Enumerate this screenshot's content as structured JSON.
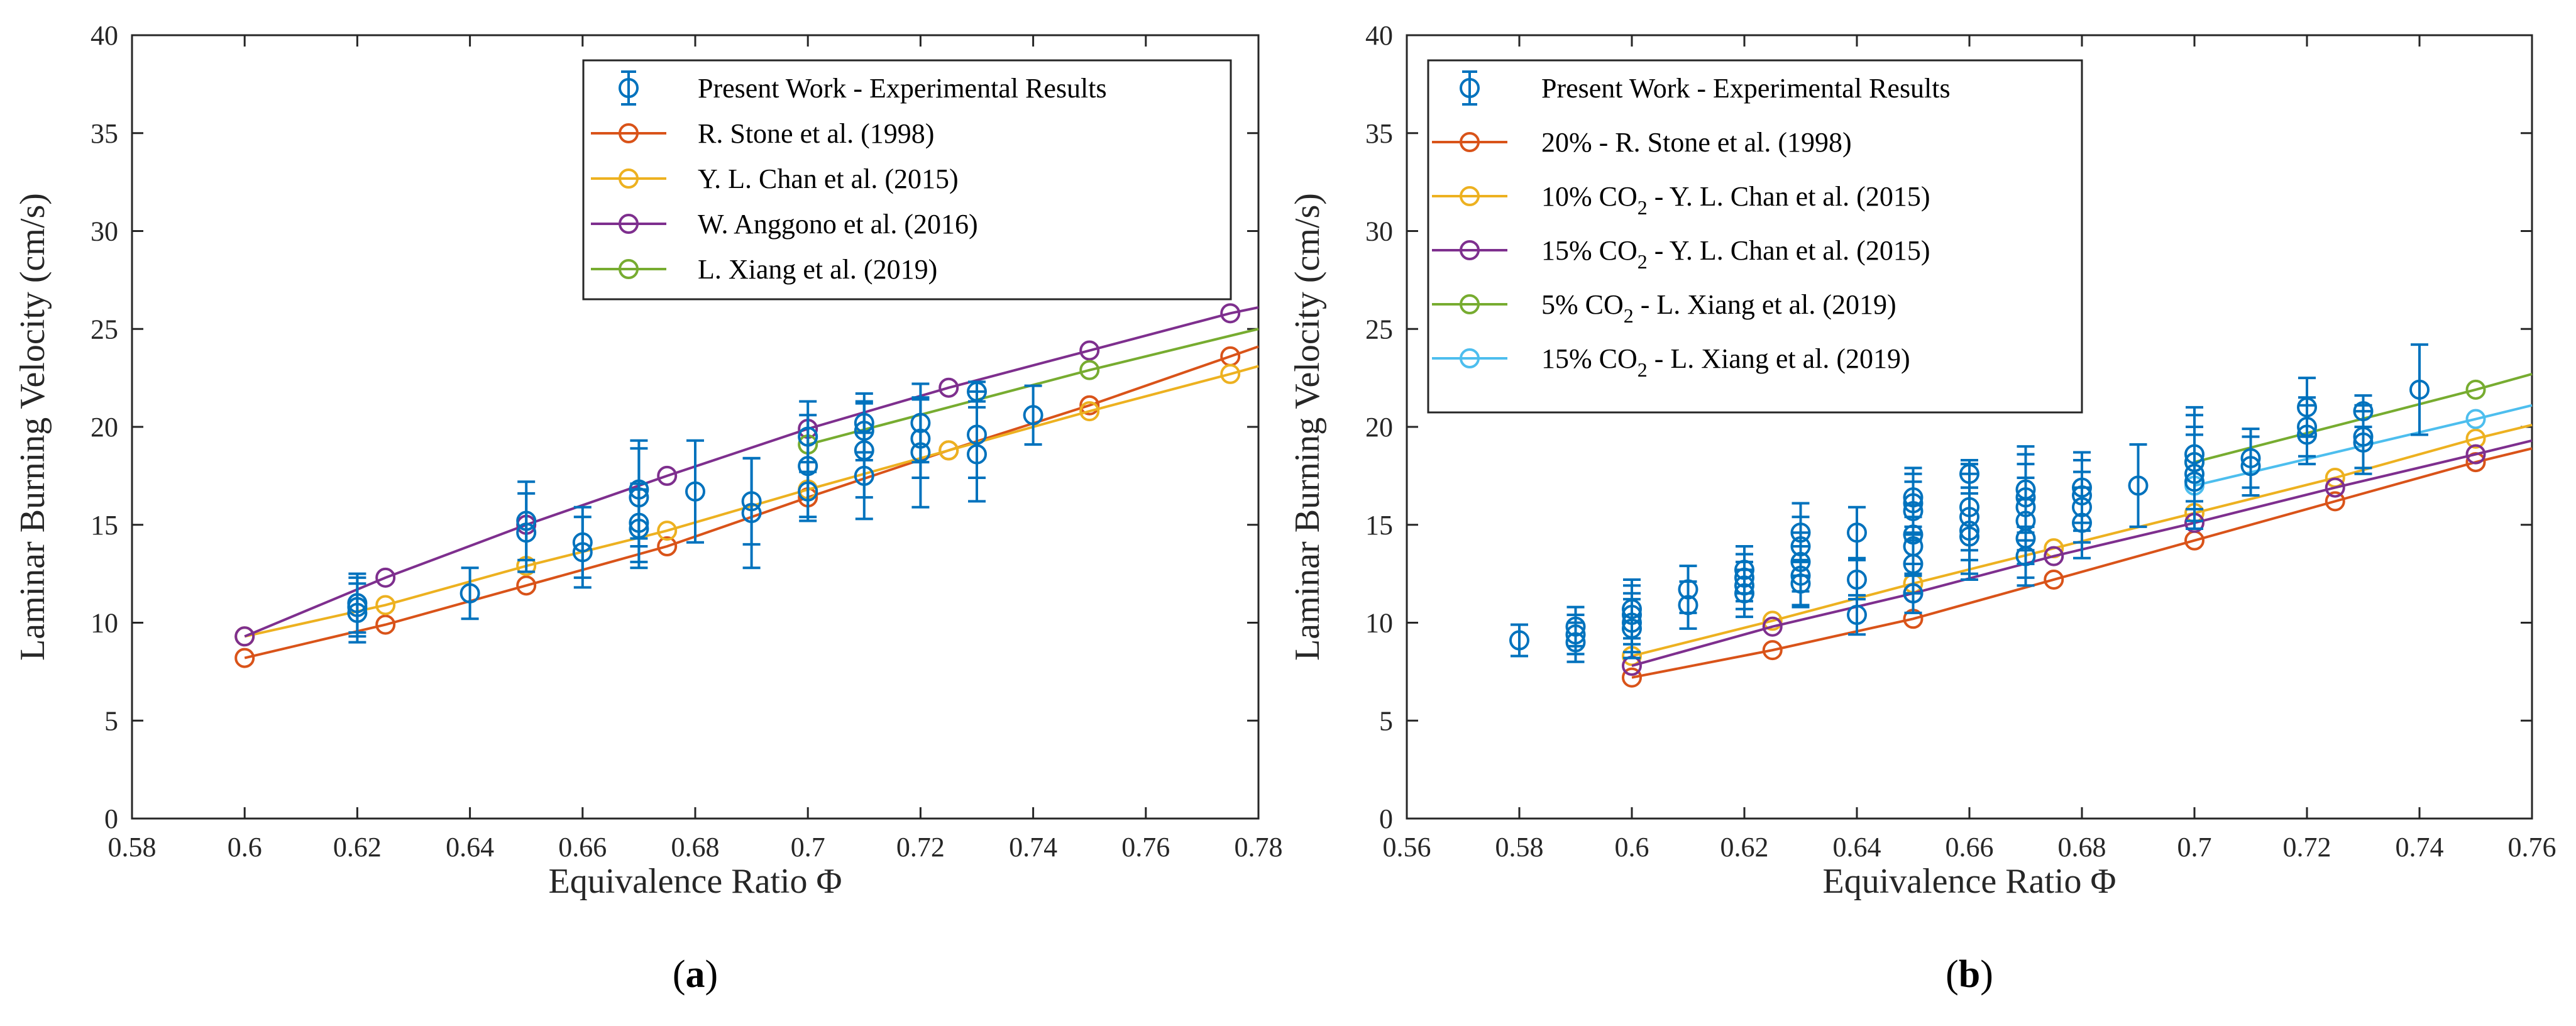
{
  "chart_data": [
    {
      "type": "line",
      "caption_prefix": "(",
      "caption_letter": "a",
      "caption_suffix": ")",
      "xlabel": "Equivalence Ratio Φ",
      "ylabel": "Laminar Burning Velocity (cm/s)",
      "xlim": [
        0.59,
        0.78
      ],
      "ylim": [
        0,
        40
      ],
      "xticks": [
        0.58,
        0.6,
        0.62,
        0.64,
        0.66,
        0.68,
        0.7,
        0.72,
        0.74,
        0.76,
        0.78
      ],
      "xtick_labels": [
        "0.58",
        "0.6",
        "0.62",
        "0.64",
        "0.66",
        "0.68",
        "0.7",
        "0.72",
        "0.74",
        "0.76",
        "0.78"
      ],
      "yticks": [
        0,
        5,
        10,
        15,
        20,
        25,
        30,
        35,
        40
      ],
      "ytick_labels": [
        "0",
        "5",
        "10",
        "15",
        "20",
        "25",
        "30",
        "35",
        "40"
      ],
      "legend_position": "top-right",
      "experimental": {
        "name": "Present Work - Experimental Results",
        "color": "#0072bd",
        "points": [
          {
            "x": 0.62,
            "y": 10.5,
            "err": 1.5
          },
          {
            "x": 0.62,
            "y": 11.0,
            "err": 1.5
          },
          {
            "x": 0.62,
            "y": 10.8,
            "err": 1.5
          },
          {
            "x": 0.64,
            "y": 11.5,
            "err": 1.3
          },
          {
            "x": 0.65,
            "y": 15.2,
            "err": 2.0
          },
          {
            "x": 0.65,
            "y": 14.6,
            "err": 2.0
          },
          {
            "x": 0.66,
            "y": 14.1,
            "err": 1.8
          },
          {
            "x": 0.66,
            "y": 13.6,
            "err": 1.8
          },
          {
            "x": 0.67,
            "y": 16.8,
            "err": 2.5
          },
          {
            "x": 0.67,
            "y": 16.4,
            "err": 2.5
          },
          {
            "x": 0.67,
            "y": 15.1,
            "err": 2.0
          },
          {
            "x": 0.67,
            "y": 14.8,
            "err": 2.0
          },
          {
            "x": 0.68,
            "y": 16.7,
            "err": 2.6
          },
          {
            "x": 0.69,
            "y": 16.2,
            "err": 2.2
          },
          {
            "x": 0.69,
            "y": 15.6,
            "err": 2.8
          },
          {
            "x": 0.7,
            "y": 19.5,
            "err": 1.8
          },
          {
            "x": 0.7,
            "y": 18.0,
            "err": 2.6
          },
          {
            "x": 0.7,
            "y": 16.7,
            "err": 1.5
          },
          {
            "x": 0.71,
            "y": 20.2,
            "err": 1.5
          },
          {
            "x": 0.71,
            "y": 19.8,
            "err": 1.5
          },
          {
            "x": 0.71,
            "y": 18.8,
            "err": 2.4
          },
          {
            "x": 0.71,
            "y": 17.5,
            "err": 2.2
          },
          {
            "x": 0.72,
            "y": 20.2,
            "err": 2.0
          },
          {
            "x": 0.72,
            "y": 19.4,
            "err": 2.0
          },
          {
            "x": 0.72,
            "y": 18.7,
            "err": 2.8
          },
          {
            "x": 0.73,
            "y": 21.8,
            "err": 0.5
          },
          {
            "x": 0.73,
            "y": 19.6,
            "err": 2.2
          },
          {
            "x": 0.73,
            "y": 18.6,
            "err": 2.4
          },
          {
            "x": 0.74,
            "y": 20.6,
            "err": 1.5
          }
        ]
      },
      "series": [
        {
          "name": "R. Stone et al. (1998)",
          "color": "#d95319",
          "x": [
            0.6,
            0.625,
            0.65,
            0.675,
            0.7,
            0.725,
            0.75,
            0.775
          ],
          "values": [
            8.2,
            9.9,
            11.9,
            13.9,
            16.4,
            18.8,
            21.1,
            23.6
          ],
          "end": 24.1
        },
        {
          "name": "Y. L. Chan et al. (2015)",
          "color": "#edb120",
          "x": [
            0.6,
            0.625,
            0.65,
            0.675,
            0.7,
            0.725,
            0.75,
            0.775
          ],
          "values": [
            9.3,
            10.9,
            12.9,
            14.7,
            16.8,
            18.8,
            20.8,
            22.7
          ],
          "end": 23.1
        },
        {
          "name": "W. Anggono et al. (2016)",
          "color": "#7e2f8e",
          "x": [
            0.6,
            0.625,
            0.65,
            0.675,
            0.7,
            0.725,
            0.75,
            0.775
          ],
          "values": [
            9.3,
            12.3,
            15.0,
            17.5,
            19.9,
            22.0,
            23.9,
            25.8
          ],
          "end": 26.1
        },
        {
          "name": "L. Xiang et al. (2019)",
          "color": "#77ac30",
          "x": [
            0.7,
            0.75
          ],
          "values": [
            19.1,
            22.9
          ],
          "end": 25.0
        }
      ]
    },
    {
      "type": "line",
      "caption_prefix": "(",
      "caption_letter": "b",
      "caption_suffix": ")",
      "xlabel": "Equivalence Ratio Φ",
      "ylabel": "Laminar Burning Velocity (cm/s)",
      "xlim": [
        0.57,
        0.76
      ],
      "ylim": [
        0,
        40
      ],
      "xticks": [
        0.56,
        0.58,
        0.6,
        0.62,
        0.64,
        0.66,
        0.68,
        0.7,
        0.72,
        0.74,
        0.76
      ],
      "xtick_labels": [
        "0.56",
        "0.58",
        "0.6",
        "0.62",
        "0.64",
        "0.66",
        "0.68",
        "0.7",
        "0.72",
        "0.74",
        "0.76"
      ],
      "yticks": [
        0,
        5,
        10,
        15,
        20,
        25,
        30,
        35,
        40
      ],
      "ytick_labels": [
        "0",
        "5",
        "10",
        "15",
        "20",
        "25",
        "30",
        "35",
        "40"
      ],
      "legend_position": "top-left",
      "experimental": {
        "name": "Present Work - Experimental Results",
        "color": "#0072bd",
        "points": [
          {
            "x": 0.58,
            "y": 9.1,
            "err": 0.8
          },
          {
            "x": 0.59,
            "y": 9.8,
            "err": 1.0
          },
          {
            "x": 0.59,
            "y": 9.4,
            "err": 1.0
          },
          {
            "x": 0.59,
            "y": 9.0,
            "err": 1.0
          },
          {
            "x": 0.6,
            "y": 10.7,
            "err": 1.5
          },
          {
            "x": 0.6,
            "y": 10.4,
            "err": 1.5
          },
          {
            "x": 0.6,
            "y": 10.0,
            "err": 1.5
          },
          {
            "x": 0.6,
            "y": 9.7,
            "err": 1.5
          },
          {
            "x": 0.61,
            "y": 11.7,
            "err": 1.2
          },
          {
            "x": 0.61,
            "y": 10.9,
            "err": 1.2
          },
          {
            "x": 0.62,
            "y": 12.7,
            "err": 1.2
          },
          {
            "x": 0.62,
            "y": 12.3,
            "err": 1.2
          },
          {
            "x": 0.62,
            "y": 11.9,
            "err": 1.2
          },
          {
            "x": 0.62,
            "y": 11.5,
            "err": 1.2
          },
          {
            "x": 0.63,
            "y": 14.6,
            "err": 1.5
          },
          {
            "x": 0.63,
            "y": 13.9,
            "err": 1.5
          },
          {
            "x": 0.63,
            "y": 13.1,
            "err": 1.5
          },
          {
            "x": 0.63,
            "y": 12.4,
            "err": 1.5
          },
          {
            "x": 0.63,
            "y": 12.0,
            "err": 1.2
          },
          {
            "x": 0.64,
            "y": 14.6,
            "err": 1.3
          },
          {
            "x": 0.64,
            "y": 12.2,
            "err": 1.0
          },
          {
            "x": 0.64,
            "y": 10.4,
            "err": 1.0
          },
          {
            "x": 0.65,
            "y": 16.4,
            "err": 1.5
          },
          {
            "x": 0.65,
            "y": 16.1,
            "err": 1.5
          },
          {
            "x": 0.65,
            "y": 15.7,
            "err": 1.5
          },
          {
            "x": 0.65,
            "y": 14.5,
            "err": 1.5
          },
          {
            "x": 0.65,
            "y": 13.9,
            "err": 1.5
          },
          {
            "x": 0.65,
            "y": 13.0,
            "err": 1.5
          },
          {
            "x": 0.65,
            "y": 11.5,
            "err": 1.0
          },
          {
            "x": 0.66,
            "y": 17.6,
            "err": 0.7
          },
          {
            "x": 0.66,
            "y": 15.9,
            "err": 2.2
          },
          {
            "x": 0.66,
            "y": 15.4,
            "err": 2.2
          },
          {
            "x": 0.66,
            "y": 14.7,
            "err": 2.2
          },
          {
            "x": 0.66,
            "y": 14.4,
            "err": 2.2
          },
          {
            "x": 0.67,
            "y": 16.8,
            "err": 2.2
          },
          {
            "x": 0.67,
            "y": 16.4,
            "err": 2.2
          },
          {
            "x": 0.67,
            "y": 15.9,
            "err": 2.2
          },
          {
            "x": 0.67,
            "y": 15.2,
            "err": 2.2
          },
          {
            "x": 0.67,
            "y": 14.3,
            "err": 2.0
          },
          {
            "x": 0.67,
            "y": 13.4,
            "err": 1.5
          },
          {
            "x": 0.68,
            "y": 16.9,
            "err": 1.8
          },
          {
            "x": 0.68,
            "y": 16.5,
            "err": 1.8
          },
          {
            "x": 0.68,
            "y": 15.9,
            "err": 1.8
          },
          {
            "x": 0.68,
            "y": 15.1,
            "err": 1.8
          },
          {
            "x": 0.69,
            "y": 17.0,
            "err": 2.1
          },
          {
            "x": 0.7,
            "y": 18.6,
            "err": 2.4
          },
          {
            "x": 0.7,
            "y": 18.2,
            "err": 2.4
          },
          {
            "x": 0.7,
            "y": 17.6,
            "err": 2.4
          },
          {
            "x": 0.7,
            "y": 17.2,
            "err": 2.4
          },
          {
            "x": 0.71,
            "y": 18.4,
            "err": 1.5
          },
          {
            "x": 0.71,
            "y": 18.0,
            "err": 1.5
          },
          {
            "x": 0.72,
            "y": 21.0,
            "err": 1.5
          },
          {
            "x": 0.72,
            "y": 20.0,
            "err": 1.5
          },
          {
            "x": 0.72,
            "y": 19.6,
            "err": 1.5
          },
          {
            "x": 0.73,
            "y": 20.8,
            "err": 0.8
          },
          {
            "x": 0.73,
            "y": 19.5,
            "err": 1.6
          },
          {
            "x": 0.73,
            "y": 19.2,
            "err": 1.6
          },
          {
            "x": 0.74,
            "y": 21.9,
            "err": 2.3
          }
        ]
      },
      "series": [
        {
          "name": "20% - R. Stone et al. (1998)",
          "color": "#d95319",
          "x": [
            0.6,
            0.625,
            0.65,
            0.675,
            0.7,
            0.725,
            0.75
          ],
          "values": [
            7.2,
            8.6,
            10.2,
            12.2,
            14.2,
            16.2,
            18.2
          ],
          "end": 18.9
        },
        {
          "name": "10% CO2 - Y. L. Chan et al. (2015)",
          "color": "#edb120",
          "x": [
            0.6,
            0.625,
            0.65,
            0.675,
            0.7,
            0.725,
            0.75
          ],
          "values": [
            8.3,
            10.1,
            12.0,
            13.8,
            15.6,
            17.4,
            19.4
          ],
          "end": 20.1
        },
        {
          "name": "15% CO2 - Y. L. Chan et al. (2015)",
          "color": "#7e2f8e",
          "x": [
            0.6,
            0.625,
            0.65,
            0.675,
            0.7,
            0.725,
            0.75
          ],
          "values": [
            7.8,
            9.8,
            11.5,
            13.4,
            15.1,
            16.9,
            18.6
          ],
          "end": 19.3
        },
        {
          "name": "5% CO2 - L. Xiang et al. (2019)",
          "color": "#77ac30",
          "x": [
            0.7,
            0.75
          ],
          "values": [
            18.2,
            21.9
          ],
          "end": 22.7
        },
        {
          "name": "15% CO2 - L. Xiang et al. (2019)",
          "color": "#4dbeee",
          "x": [
            0.7,
            0.75
          ],
          "values": [
            17.0,
            20.4
          ],
          "end": 21.1
        }
      ]
    }
  ],
  "legend_b_parts": [
    {
      "pre": "",
      "sub": "",
      "post": "Present Work - Experimental Results"
    },
    {
      "pre": "",
      "sub": "",
      "post": "20% - R. Stone et al. (1998)"
    },
    {
      "pre": "10% CO",
      "sub": "2",
      "post": " - Y. L. Chan et al. (2015)"
    },
    {
      "pre": "15% CO",
      "sub": "2",
      "post": " - Y. L. Chan et al. (2015)"
    },
    {
      "pre": "5% CO",
      "sub": "2",
      "post": " - L. Xiang et al. (2019)"
    },
    {
      "pre": "15% CO",
      "sub": "2",
      "post": " - L. Xiang et al. (2019)"
    }
  ]
}
